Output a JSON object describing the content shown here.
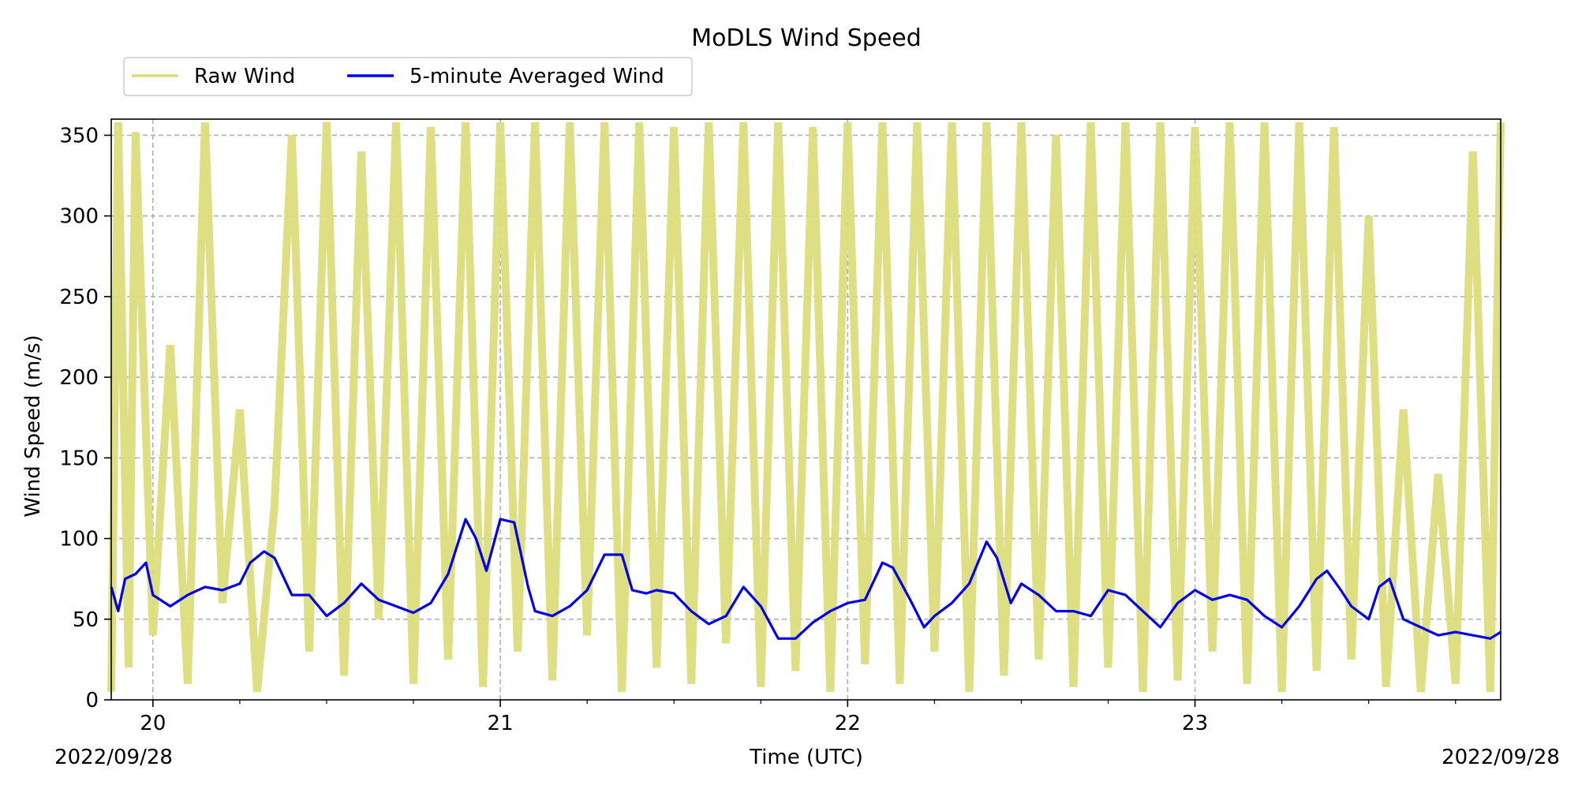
{
  "chart_data": {
    "type": "line",
    "title": "MoDLS Wind Speed",
    "xlabel": "Time (UTC)",
    "ylabel": "Wind Speed (m/s)",
    "x_corner_labels": {
      "left": "2022/09/28",
      "right": "2022/09/28"
    },
    "xlim": [
      19.88,
      23.88
    ],
    "ylim": [
      0,
      360
    ],
    "x_ticks": [
      {
        "value": 20,
        "label": "20"
      },
      {
        "value": 21,
        "label": "21"
      },
      {
        "value": 22,
        "label": "22"
      },
      {
        "value": 23,
        "label": "23"
      }
    ],
    "x_minor_ticks": [
      20.25,
      20.5,
      20.75,
      21.25,
      21.5,
      21.75,
      22.25,
      22.5,
      22.75,
      23.25,
      23.5,
      23.75
    ],
    "y_ticks": [
      {
        "value": 0,
        "label": "0"
      },
      {
        "value": 50,
        "label": "50"
      },
      {
        "value": 100,
        "label": "100"
      },
      {
        "value": 150,
        "label": "150"
      },
      {
        "value": 200,
        "label": "200"
      },
      {
        "value": 250,
        "label": "250"
      },
      {
        "value": 300,
        "label": "300"
      },
      {
        "value": 350,
        "label": "350"
      }
    ],
    "grid": true,
    "legend_position": "top-left",
    "series": [
      {
        "name": "Raw Wind",
        "color": "#dcdc7c",
        "style": "noisy high-frequency signal spanning 0 to 360 with dense vertical spikes",
        "x": [
          19.88,
          19.9,
          19.93,
          19.95,
          20.0,
          20.05,
          20.1,
          20.15,
          20.2,
          20.25,
          20.3,
          20.35,
          20.4,
          20.45,
          20.5,
          20.55,
          20.6,
          20.65,
          20.7,
          20.75,
          20.8,
          20.85,
          20.9,
          20.95,
          21.0,
          21.05,
          21.1,
          21.15,
          21.2,
          21.25,
          21.3,
          21.35,
          21.4,
          21.45,
          21.5,
          21.55,
          21.6,
          21.65,
          21.7,
          21.75,
          21.8,
          21.85,
          21.9,
          21.95,
          22.0,
          22.05,
          22.1,
          22.15,
          22.2,
          22.25,
          22.3,
          22.35,
          22.4,
          22.45,
          22.5,
          22.55,
          22.6,
          22.65,
          22.7,
          22.75,
          22.8,
          22.85,
          22.9,
          22.95,
          23.0,
          23.05,
          23.1,
          23.15,
          23.2,
          23.25,
          23.3,
          23.35,
          23.4,
          23.45,
          23.5,
          23.55,
          23.6,
          23.65,
          23.7,
          23.75,
          23.8,
          23.85,
          23.88
        ],
        "y": [
          5,
          358,
          20,
          352,
          40,
          220,
          10,
          358,
          60,
          180,
          5,
          120,
          350,
          30,
          358,
          15,
          340,
          50,
          358,
          10,
          355,
          25,
          358,
          8,
          358,
          30,
          358,
          12,
          358,
          40,
          358,
          5,
          358,
          20,
          355,
          10,
          358,
          35,
          358,
          8,
          358,
          18,
          355,
          5,
          358,
          22,
          358,
          10,
          358,
          30,
          358,
          5,
          358,
          15,
          358,
          25,
          350,
          8,
          358,
          20,
          358,
          5,
          358,
          12,
          355,
          30,
          358,
          10,
          358,
          5,
          358,
          18,
          355,
          25,
          300,
          8,
          180,
          5,
          140,
          10,
          340,
          5,
          358
        ]
      },
      {
        "name": "5-minute Averaged Wind",
        "color": "#0000ee",
        "x": [
          19.88,
          19.9,
          19.92,
          19.95,
          19.98,
          20.0,
          20.05,
          20.1,
          20.15,
          20.2,
          20.25,
          20.28,
          20.32,
          20.35,
          20.4,
          20.45,
          20.5,
          20.55,
          20.6,
          20.65,
          20.7,
          20.75,
          20.8,
          20.85,
          20.9,
          20.93,
          20.96,
          21.0,
          21.04,
          21.08,
          21.1,
          21.15,
          21.2,
          21.25,
          21.3,
          21.35,
          21.38,
          21.42,
          21.45,
          21.5,
          21.55,
          21.6,
          21.65,
          21.7,
          21.75,
          21.8,
          21.85,
          21.9,
          21.95,
          22.0,
          22.05,
          22.1,
          22.13,
          22.18,
          22.22,
          22.25,
          22.3,
          22.35,
          22.4,
          22.43,
          22.47,
          22.5,
          22.55,
          22.6,
          22.65,
          22.7,
          22.75,
          22.8,
          22.85,
          22.9,
          22.95,
          23.0,
          23.05,
          23.1,
          23.15,
          23.2,
          23.25,
          23.3,
          23.35,
          23.38,
          23.42,
          23.45,
          23.5,
          23.53,
          23.56,
          23.6,
          23.65,
          23.7,
          23.75,
          23.8,
          23.85,
          23.88
        ],
        "y": [
          70,
          55,
          75,
          78,
          85,
          65,
          58,
          65,
          70,
          68,
          72,
          85,
          92,
          88,
          65,
          65,
          52,
          60,
          72,
          62,
          58,
          54,
          60,
          78,
          112,
          100,
          80,
          112,
          110,
          70,
          55,
          52,
          58,
          68,
          90,
          90,
          68,
          66,
          68,
          66,
          55,
          47,
          52,
          70,
          58,
          38,
          38,
          48,
          55,
          60,
          62,
          85,
          82,
          62,
          45,
          52,
          60,
          72,
          98,
          88,
          60,
          72,
          65,
          55,
          55,
          52,
          68,
          65,
          55,
          45,
          60,
          68,
          62,
          65,
          62,
          52,
          45,
          58,
          75,
          80,
          68,
          58,
          50,
          70,
          75,
          50,
          45,
          40,
          42,
          40,
          38,
          42
        ]
      }
    ]
  }
}
